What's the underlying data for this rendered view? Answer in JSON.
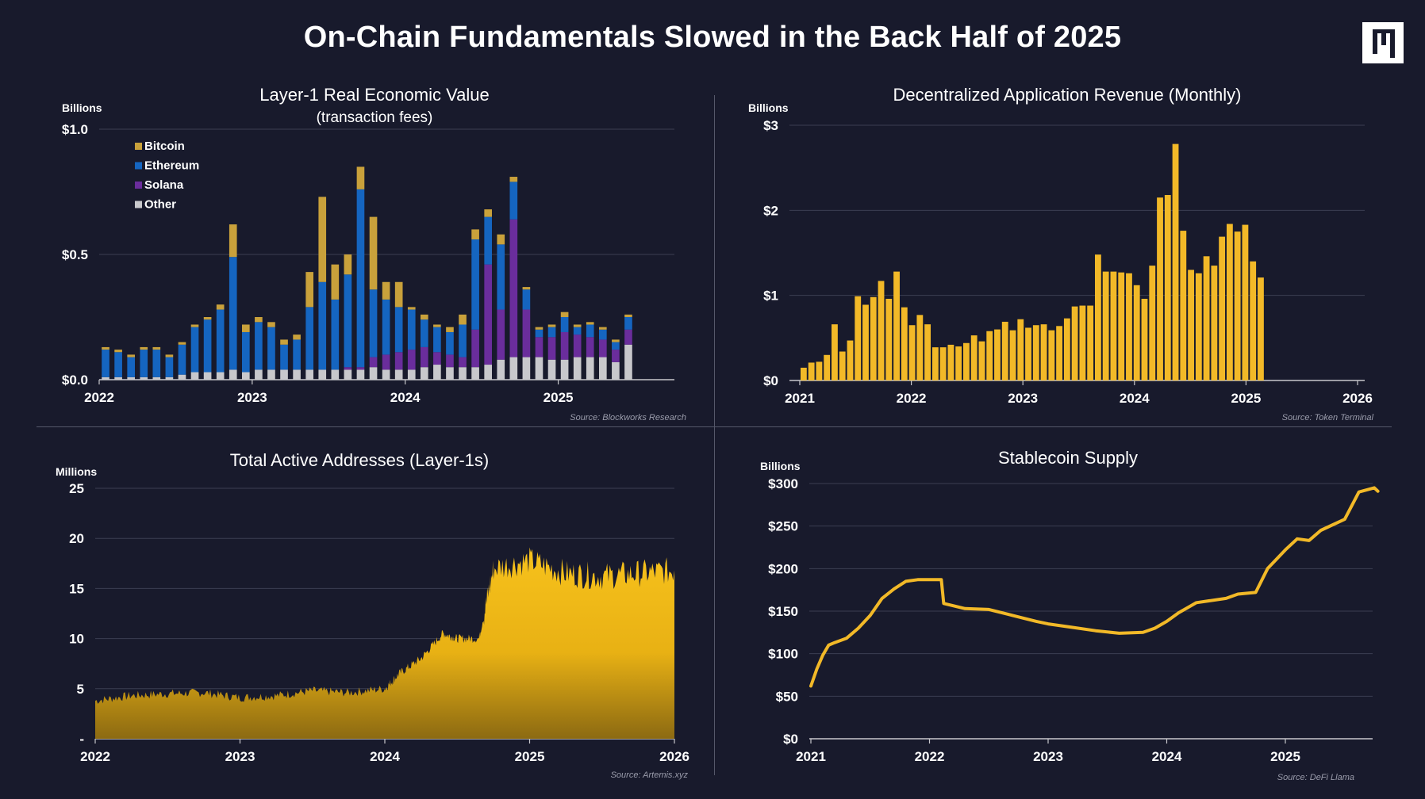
{
  "title": "On-Chain Fundamentals Slowed in the Back Half of 2025",
  "logo": "logo-mark",
  "colors": {
    "background": "#181a2c",
    "gold": "#f2b928",
    "bitcoin": "#c9a13b",
    "ethereum": "#1565c0",
    "solana": "#6a2d9c",
    "other": "#c8c8cc",
    "grid": "#3b3e52"
  },
  "chart_data": [
    {
      "type": "bar",
      "stacked": true,
      "title": "Layer-1 Real Economic Value",
      "subtitle": "(transaction fees)",
      "unit": "Billions",
      "source": "Source: Blockworks Research",
      "ylim": [
        0,
        1.0
      ],
      "yticks": [
        0,
        0.5,
        1.0
      ],
      "ytick_labels": [
        "$0.0",
        "$0.5",
        "$1.0"
      ],
      "xticks": [
        "2022",
        "2023",
        "2024",
        "2025"
      ],
      "legend": "top-left",
      "categories": [
        "2022-01",
        "2022-02",
        "2022-03",
        "2022-04",
        "2022-05",
        "2022-06",
        "2022-07",
        "2022-08",
        "2022-09",
        "2022-10",
        "2022-11",
        "2022-12",
        "2023-01",
        "2023-02",
        "2023-03",
        "2023-04",
        "2023-05",
        "2023-06",
        "2023-07",
        "2023-08",
        "2023-09",
        "2023-10",
        "2023-11",
        "2023-12",
        "2024-01",
        "2024-02",
        "2024-03",
        "2024-04",
        "2024-05",
        "2024-06",
        "2024-07",
        "2024-08",
        "2024-09",
        "2024-10",
        "2024-11",
        "2024-12",
        "2025-01",
        "2025-02",
        "2025-03",
        "2025-04",
        "2025-05",
        "2025-06"
      ],
      "series": [
        {
          "name": "Other",
          "values": [
            0.01,
            0.01,
            0.01,
            0.01,
            0.01,
            0.01,
            0.02,
            0.03,
            0.03,
            0.03,
            0.04,
            0.03,
            0.04,
            0.04,
            0.04,
            0.04,
            0.04,
            0.04,
            0.04,
            0.04,
            0.04,
            0.05,
            0.04,
            0.04,
            0.04,
            0.05,
            0.06,
            0.05,
            0.05,
            0.05,
            0.06,
            0.08,
            0.09,
            0.09,
            0.09,
            0.08,
            0.08,
            0.09,
            0.09,
            0.09,
            0.07,
            0.14
          ]
        },
        {
          "name": "Solana",
          "values": [
            0,
            0,
            0,
            0,
            0,
            0,
            0,
            0,
            0,
            0,
            0,
            0,
            0,
            0,
            0,
            0,
            0,
            0,
            0,
            0.01,
            0.01,
            0.04,
            0.06,
            0.07,
            0.08,
            0.08,
            0.05,
            0.05,
            0.04,
            0.15,
            0.4,
            0.2,
            0.55,
            0.19,
            0.08,
            0.09,
            0.11,
            0.09,
            0.08,
            0.07,
            0.05,
            0.06
          ]
        },
        {
          "name": "Ethereum",
          "values": [
            0.11,
            0.1,
            0.08,
            0.11,
            0.11,
            0.08,
            0.12,
            0.18,
            0.21,
            0.25,
            0.45,
            0.16,
            0.19,
            0.17,
            0.1,
            0.12,
            0.25,
            0.35,
            0.28,
            0.37,
            0.71,
            0.27,
            0.22,
            0.18,
            0.16,
            0.11,
            0.1,
            0.09,
            0.13,
            0.36,
            0.19,
            0.26,
            0.15,
            0.08,
            0.03,
            0.04,
            0.06,
            0.03,
            0.05,
            0.04,
            0.03,
            0.05
          ]
        },
        {
          "name": "Bitcoin",
          "values": [
            0.01,
            0.01,
            0.01,
            0.01,
            0.01,
            0.01,
            0.01,
            0.01,
            0.01,
            0.02,
            0.13,
            0.03,
            0.02,
            0.02,
            0.02,
            0.02,
            0.14,
            0.34,
            0.14,
            0.08,
            0.09,
            0.29,
            0.07,
            0.1,
            0.01,
            0.02,
            0.01,
            0.02,
            0.04,
            0.04,
            0.03,
            0.04,
            0.02,
            0.01,
            0.01,
            0.01,
            0.02,
            0.01,
            0.01,
            0.01,
            0.01,
            0.01
          ]
        }
      ]
    },
    {
      "type": "bar",
      "title": "Decentralized Application Revenue (Monthly)",
      "unit": "Billions",
      "source": "Source: Token Terminal",
      "ylim": [
        0,
        3
      ],
      "yticks": [
        0,
        1,
        2,
        3
      ],
      "ytick_labels": [
        "$0",
        "$1",
        "$2",
        "$3"
      ],
      "xticks": [
        "2021",
        "2022",
        "2023",
        "2024",
        "2025",
        "2026"
      ],
      "categories_start": "2021-01",
      "values": [
        0.15,
        0.21,
        0.22,
        0.3,
        0.66,
        0.34,
        0.47,
        0.99,
        0.89,
        0.98,
        1.17,
        0.96,
        1.28,
        0.86,
        0.65,
        0.77,
        0.66,
        0.39,
        0.39,
        0.42,
        0.4,
        0.44,
        0.53,
        0.46,
        0.58,
        0.6,
        0.69,
        0.59,
        0.72,
        0.62,
        0.65,
        0.66,
        0.59,
        0.64,
        0.73,
        0.87,
        0.88,
        0.88,
        1.48,
        1.28,
        1.28,
        1.27,
        1.26,
        1.12,
        0.96,
        1.35,
        2.15,
        2.18,
        2.78,
        1.76,
        1.3,
        1.26,
        1.46,
        1.35,
        1.69,
        1.84,
        1.75,
        1.83,
        1.4,
        1.21
      ]
    },
    {
      "type": "area",
      "title": "Total Active Addresses (Layer-1s)",
      "unit": "Millions",
      "source": "Source: Artemis.xyz",
      "ylim": [
        0,
        25
      ],
      "yticks": [
        0,
        5,
        10,
        15,
        20,
        25
      ],
      "ytick_labels": [
        "-",
        "5",
        "10",
        "15",
        "20",
        "25"
      ],
      "xticks": [
        "2022",
        "2023",
        "2024",
        "2025",
        "2026"
      ],
      "x": [
        2022.0,
        2022.25,
        2022.5,
        2022.75,
        2023.0,
        2023.25,
        2023.5,
        2023.75,
        2024.0,
        2024.1,
        2024.25,
        2024.4,
        2024.5,
        2024.65,
        2024.75,
        2025.0,
        2025.25,
        2025.5,
        2025.75,
        2026.0
      ],
      "values": [
        3.8,
        4.3,
        4.5,
        4.6,
        4.1,
        4.3,
        4.8,
        4.6,
        5.0,
        6.5,
        8.0,
        10.5,
        10.0,
        10.0,
        17.0,
        17.8,
        16.5,
        16.2,
        16.5,
        16.8
      ]
    },
    {
      "type": "line",
      "title": "Stablecoin Supply",
      "unit": "Billions",
      "source": "Source: DeFi Llama",
      "ylim": [
        0,
        300
      ],
      "yticks": [
        0,
        50,
        100,
        150,
        200,
        250,
        300
      ],
      "ytick_labels": [
        "$0",
        "$50",
        "$100",
        "$150",
        "$200",
        "$250",
        "$300"
      ],
      "xticks": [
        "2021",
        "2022",
        "2023",
        "2024",
        "2025"
      ],
      "x": [
        2021.0,
        2021.05,
        2021.1,
        2021.15,
        2021.2,
        2021.3,
        2021.4,
        2021.5,
        2021.6,
        2021.7,
        2021.8,
        2021.9,
        2022.0,
        2022.1,
        2022.12,
        2022.3,
        2022.5,
        2022.7,
        2022.9,
        2023.0,
        2023.2,
        2023.4,
        2023.6,
        2023.8,
        2023.9,
        2024.0,
        2024.1,
        2024.25,
        2024.5,
        2024.6,
        2024.75,
        2024.85,
        2025.0,
        2025.1,
        2025.2,
        2025.3,
        2025.5,
        2025.62,
        2025.75,
        2025.78
      ],
      "values": [
        62,
        82,
        98,
        110,
        113,
        118,
        130,
        145,
        165,
        176,
        185,
        187,
        187,
        187,
        159,
        153,
        152,
        145,
        138,
        135,
        131,
        127,
        124,
        125,
        130,
        138,
        148,
        160,
        165,
        170,
        172,
        200,
        222,
        235,
        233,
        245,
        258,
        290,
        295,
        291
      ]
    }
  ]
}
